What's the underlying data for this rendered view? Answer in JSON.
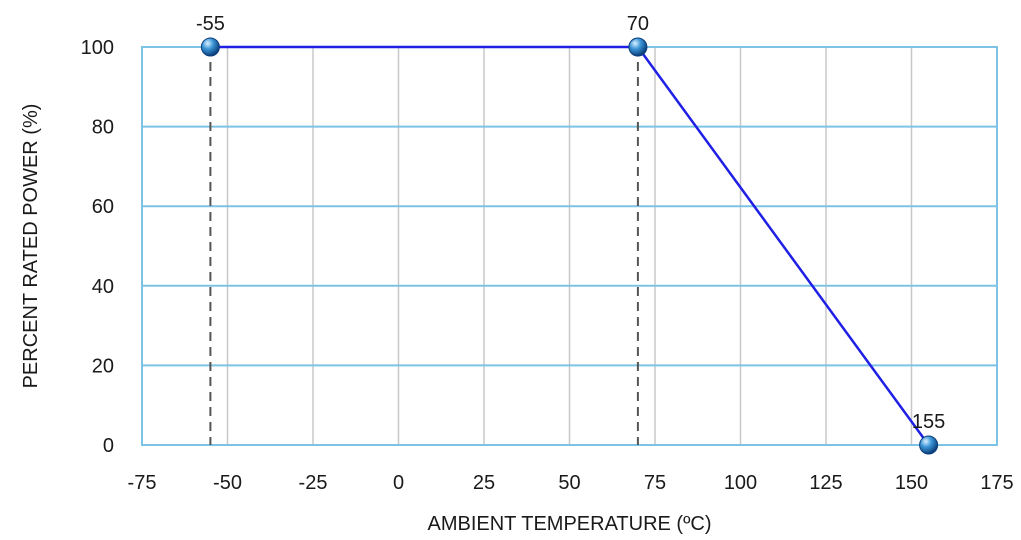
{
  "chart_data": {
    "type": "line",
    "title": "",
    "xlabel": "AMBIENT TEMPERATURE (ºC)",
    "ylabel": "PERCENT RATED POWER (%)",
    "xlim": [
      -75,
      175
    ],
    "ylim": [
      0,
      100
    ],
    "x_ticks": [
      -75,
      -50,
      -25,
      0,
      25,
      50,
      75,
      100,
      125,
      150,
      175
    ],
    "y_ticks": [
      0,
      20,
      40,
      60,
      80,
      100
    ],
    "grid": true,
    "series": [
      {
        "points": [
          {
            "x": -55,
            "y": 100,
            "label": "-55"
          },
          {
            "x": 70,
            "y": 100,
            "label": "70"
          },
          {
            "x": 155,
            "y": 0,
            "label": "155"
          }
        ]
      }
    ],
    "drop_lines_at_x": [
      -55,
      70
    ],
    "colors": {
      "line": "#1f1fe6",
      "marker": "#2f86c9",
      "h_grid": "#7cc3e6",
      "v_grid": "#c8c8c8",
      "drop_line": "#555555"
    }
  }
}
